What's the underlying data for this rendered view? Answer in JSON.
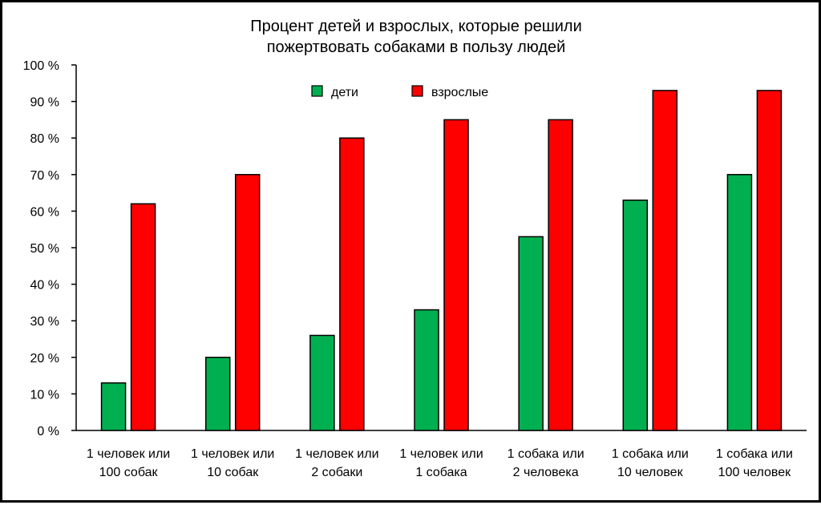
{
  "chart_data": {
    "type": "bar",
    "title_lines": [
      "Процент детей и взрослых, которые решили",
      "пожертвовать собаками в пользу людей"
    ],
    "categories": [
      [
        "1 человек или",
        "100 собак"
      ],
      [
        "1 человек или",
        "10 собак"
      ],
      [
        "1 человек или",
        "2 собаки"
      ],
      [
        "1 человек или",
        "1 собака"
      ],
      [
        "1 собака или",
        "2 человека"
      ],
      [
        "1 собака или",
        "10 человек"
      ],
      [
        "1 собака или",
        "100 человек"
      ]
    ],
    "series": [
      {
        "name": "дети",
        "color": "#00b050",
        "values": [
          13,
          20,
          26,
          33,
          53,
          63,
          70
        ]
      },
      {
        "name": "взрослые",
        "color": "#ff0000",
        "values": [
          62,
          70,
          80,
          85,
          85,
          93,
          93
        ]
      }
    ],
    "ylim": [
      0,
      100
    ],
    "yticks": [
      0,
      10,
      20,
      30,
      40,
      50,
      60,
      70,
      80,
      90,
      100
    ],
    "ytick_labels": [
      "0 %",
      "10 %",
      "20 %",
      "30 %",
      "40 %",
      "50 %",
      "60 %",
      "70 %",
      "80 %",
      "90 %",
      "100 %"
    ],
    "grid": false,
    "legend_position": "top-center"
  }
}
